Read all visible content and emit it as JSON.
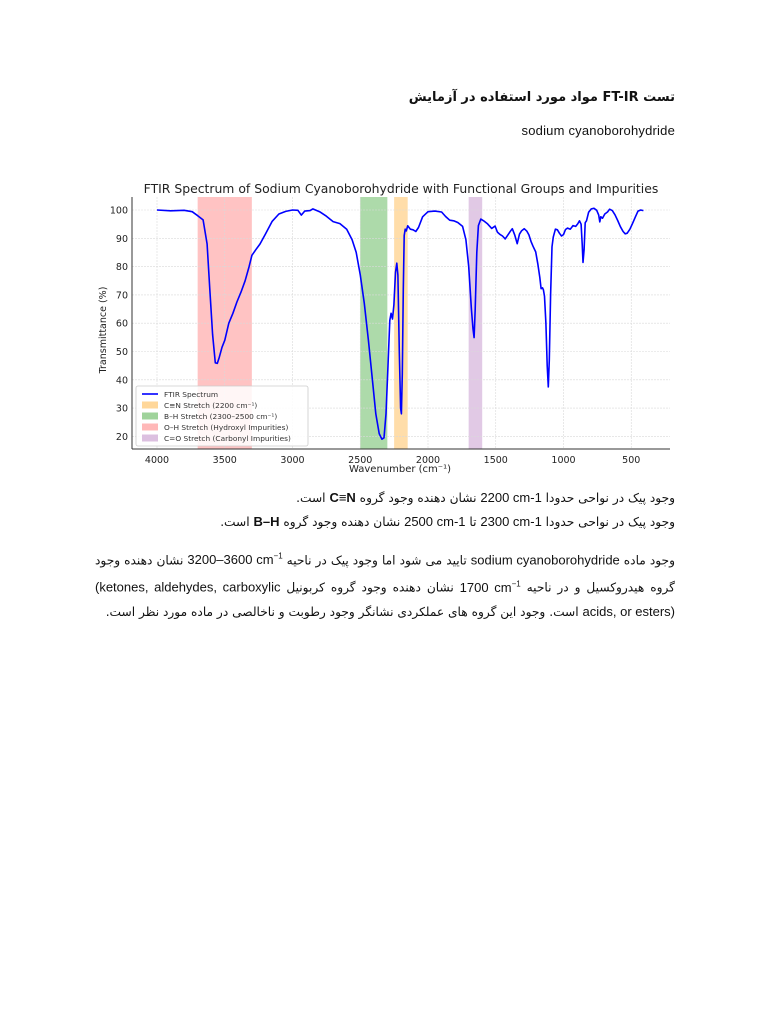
{
  "document": {
    "title": "تست FT-IR مواد مورد استفاده در آزمایش",
    "subtitle": "sodium cyanoborohydride",
    "paragraph1": {
      "line1_pre": "وجود پیک در نواحی حدودا ",
      "line1_value": "2200 cm-1",
      "line1_mid": " نشان دهنده وجود گروه ",
      "line1_group": "C≡N",
      "line1_post": " است.",
      "line2_pre": "وجود پیک در نواحی حدودا ",
      "line2_value_a": "2300 cm-1",
      "line2_to": " تا ",
      "line2_value_b": "2500 cm-1",
      "line2_mid": " نشان دهنده وجود گروه ",
      "line2_group": "B–H",
      "line2_post": " است."
    },
    "paragraph2": {
      "s1_pre": "وجود ماده ",
      "s1_compound": "sodium cyanoborohydride",
      "s1_mid": " تایید می شود اما وجود پیک در ناحیه ",
      "s1_range": "3200–3600 cm",
      "s1_sup": "−1",
      "s1_post": " نشان دهنده وجود گروه هیدروکسیل و در ناحیه ",
      "s2_value": "1700 cm",
      "s2_sup": "−1",
      "s2_mid": " نشان دهنده وجود گروه کربونیل ",
      "s2_list": "(ketones, aldehydes, carboxylic acids, or esters)",
      "s2_post": " است. وجود این گروه های عملکردی نشانگر وجود رطوبت و ناخالصی در ماده مورد نظر است."
    }
  },
  "chart_data": {
    "type": "line",
    "title": "FTIR Spectrum of Sodium Cyanoborohydride with Functional Groups and Impurities",
    "xlabel": "Wavenumber (cm⁻¹)",
    "ylabel": "Transmittance (%)",
    "xlim": [
      4200,
      280
    ],
    "x_inverted": true,
    "ylim": [
      15.4,
      104.5
    ],
    "x_ticks": [
      4000,
      3500,
      3000,
      2500,
      2000,
      1500,
      1000,
      500
    ],
    "y_ticks": [
      20,
      30,
      40,
      50,
      60,
      70,
      80,
      90,
      100
    ],
    "grid": true,
    "legend_position": "lower left",
    "series": [
      {
        "name": "FTIR Spectrum",
        "color": "#0000ff",
        "points": [
          [
            4000,
            100
          ],
          [
            3900,
            99.7
          ],
          [
            3800,
            99.9
          ],
          [
            3740,
            99.4
          ],
          [
            3700,
            98
          ],
          [
            3660,
            96.5
          ],
          [
            3630,
            88
          ],
          [
            3610,
            72
          ],
          [
            3590,
            56
          ],
          [
            3570,
            46
          ],
          [
            3555,
            45.8
          ],
          [
            3540,
            48
          ],
          [
            3520,
            51.5
          ],
          [
            3500,
            54
          ],
          [
            3470,
            60
          ],
          [
            3440,
            63.5
          ],
          [
            3410,
            67.5
          ],
          [
            3380,
            71
          ],
          [
            3350,
            75
          ],
          [
            3320,
            80
          ],
          [
            3300,
            84
          ],
          [
            3270,
            86
          ],
          [
            3240,
            88
          ],
          [
            3200,
            91.5
          ],
          [
            3150,
            96
          ],
          [
            3100,
            98.6
          ],
          [
            3050,
            99.5
          ],
          [
            3000,
            100
          ],
          [
            2960,
            99.9
          ],
          [
            2935,
            98.2
          ],
          [
            2910,
            99.6
          ],
          [
            2870,
            99.8
          ],
          [
            2850,
            100.4
          ],
          [
            2800,
            99.4
          ],
          [
            2750,
            97.8
          ],
          [
            2700,
            95.9
          ],
          [
            2650,
            95.2
          ],
          [
            2600,
            93.2
          ],
          [
            2560,
            89.5
          ],
          [
            2530,
            85
          ],
          [
            2500,
            77
          ],
          [
            2470,
            67
          ],
          [
            2440,
            54
          ],
          [
            2410,
            40
          ],
          [
            2385,
            28
          ],
          [
            2360,
            21
          ],
          [
            2340,
            19
          ],
          [
            2325,
            19.5
          ],
          [
            2310,
            28
          ],
          [
            2295,
            45
          ],
          [
            2282,
            61
          ],
          [
            2272,
            63.5
          ],
          [
            2262,
            61.5
          ],
          [
            2252,
            66.5
          ],
          [
            2240,
            78
          ],
          [
            2230,
            81.2
          ],
          [
            2222,
            77
          ],
          [
            2212,
            50
          ],
          [
            2202,
            30
          ],
          [
            2196,
            28
          ],
          [
            2190,
            42
          ],
          [
            2182,
            72
          ],
          [
            2176,
            91
          ],
          [
            2168,
            93.2
          ],
          [
            2160,
            92.6
          ],
          [
            2150,
            94.4
          ],
          [
            2130,
            93.2
          ],
          [
            2110,
            93
          ],
          [
            2090,
            92.4
          ],
          [
            2070,
            93.8
          ],
          [
            2040,
            97.6
          ],
          [
            2000,
            99.4
          ],
          [
            1950,
            99.6
          ],
          [
            1900,
            99.3
          ],
          [
            1870,
            97.7
          ],
          [
            1840,
            96.4
          ],
          [
            1810,
            96.2
          ],
          [
            1780,
            95.6
          ],
          [
            1745,
            94.2
          ],
          [
            1720,
            89.5
          ],
          [
            1700,
            80
          ],
          [
            1680,
            65
          ],
          [
            1668,
            58
          ],
          [
            1660,
            54.9
          ],
          [
            1652,
            65
          ],
          [
            1640,
            85
          ],
          [
            1628,
            94.5
          ],
          [
            1610,
            96.8
          ],
          [
            1590,
            96.2
          ],
          [
            1560,
            95.1
          ],
          [
            1530,
            93.5
          ],
          [
            1505,
            94.3
          ],
          [
            1488,
            92.2
          ],
          [
            1470,
            91.4
          ],
          [
            1450,
            90.8
          ],
          [
            1430,
            89.8
          ],
          [
            1410,
            91.2
          ],
          [
            1392,
            92.5
          ],
          [
            1378,
            93.4
          ],
          [
            1360,
            91.2
          ],
          [
            1342,
            88.1
          ],
          [
            1325,
            91.5
          ],
          [
            1310,
            92.6
          ],
          [
            1290,
            93.4
          ],
          [
            1270,
            92.5
          ],
          [
            1255,
            91.2
          ],
          [
            1240,
            88.9
          ],
          [
            1225,
            87.2
          ],
          [
            1205,
            85.2
          ],
          [
            1190,
            81
          ],
          [
            1175,
            76.2
          ],
          [
            1165,
            72.2
          ],
          [
            1155,
            72.5
          ],
          [
            1148,
            71.8
          ],
          [
            1140,
            69.5
          ],
          [
            1130,
            60
          ],
          [
            1120,
            45
          ],
          [
            1112,
            37.5
          ],
          [
            1105,
            47
          ],
          [
            1095,
            70
          ],
          [
            1085,
            87
          ],
          [
            1075,
            90.5
          ],
          [
            1060,
            93.2
          ],
          [
            1045,
            93
          ],
          [
            1030,
            91.8
          ],
          [
            1015,
            90.8
          ],
          [
            1000,
            91.3
          ],
          [
            985,
            93.1
          ],
          [
            970,
            93.6
          ],
          [
            950,
            93.2
          ],
          [
            930,
            94.5
          ],
          [
            910,
            94.2
          ],
          [
            895,
            95.1
          ],
          [
            882,
            96.2
          ],
          [
            870,
            95
          ],
          [
            862,
            88
          ],
          [
            856,
            81.5
          ],
          [
            848,
            86
          ],
          [
            840,
            95.5
          ],
          [
            830,
            96.2
          ],
          [
            815,
            99.2
          ],
          [
            795,
            100.4
          ],
          [
            775,
            100.6
          ],
          [
            755,
            99.9
          ],
          [
            740,
            98.2
          ],
          [
            732,
            95.8
          ],
          [
            725,
            97.6
          ],
          [
            712,
            97.1
          ],
          [
            695,
            98.6
          ],
          [
            675,
            99.3
          ],
          [
            660,
            100.3
          ],
          [
            640,
            99.8
          ],
          [
            620,
            98.3
          ],
          [
            600,
            96.3
          ],
          [
            580,
            94.1
          ],
          [
            560,
            92.4
          ],
          [
            545,
            91.6
          ],
          [
            530,
            91.8
          ],
          [
            510,
            93.2
          ],
          [
            490,
            95.3
          ],
          [
            470,
            97.5
          ],
          [
            450,
            99.6
          ],
          [
            430,
            100
          ],
          [
            410,
            99.8
          ]
        ]
      }
    ],
    "highlight_regions": [
      {
        "label": "C≡N Stretch (2200 cm⁻¹)",
        "x_range": [
          2250,
          2150
        ],
        "color": "#ffd79a"
      },
      {
        "label": "B–H Stretch (2300–2500 cm⁻¹)",
        "x_range": [
          2500,
          2300
        ],
        "color": "#9fd39b"
      },
      {
        "label": "O–H Stretch (Hydroxyl Impurities)",
        "x_range": [
          3700,
          3300
        ],
        "color": "#ffb8b8"
      },
      {
        "label": "C=O Stretch (Carbonyl Impurities)",
        "x_range": [
          1700,
          1600
        ],
        "color": "#dcc0e0"
      }
    ],
    "legend": [
      {
        "label": "FTIR Spectrum",
        "kind": "line",
        "color": "#0000ff"
      },
      {
        "label": "C≡N Stretch (2200 cm⁻¹)",
        "kind": "patch",
        "color": "#ffd79a"
      },
      {
        "label": "B–H Stretch (2300–2500 cm⁻¹)",
        "kind": "patch",
        "color": "#9fd39b"
      },
      {
        "label": "O–H Stretch (Hydroxyl Impurities)",
        "kind": "patch",
        "color": "#ffb8b8"
      },
      {
        "label": "C=O Stretch (Carbonyl Impurities)",
        "kind": "patch",
        "color": "#dcc0e0"
      }
    ]
  }
}
